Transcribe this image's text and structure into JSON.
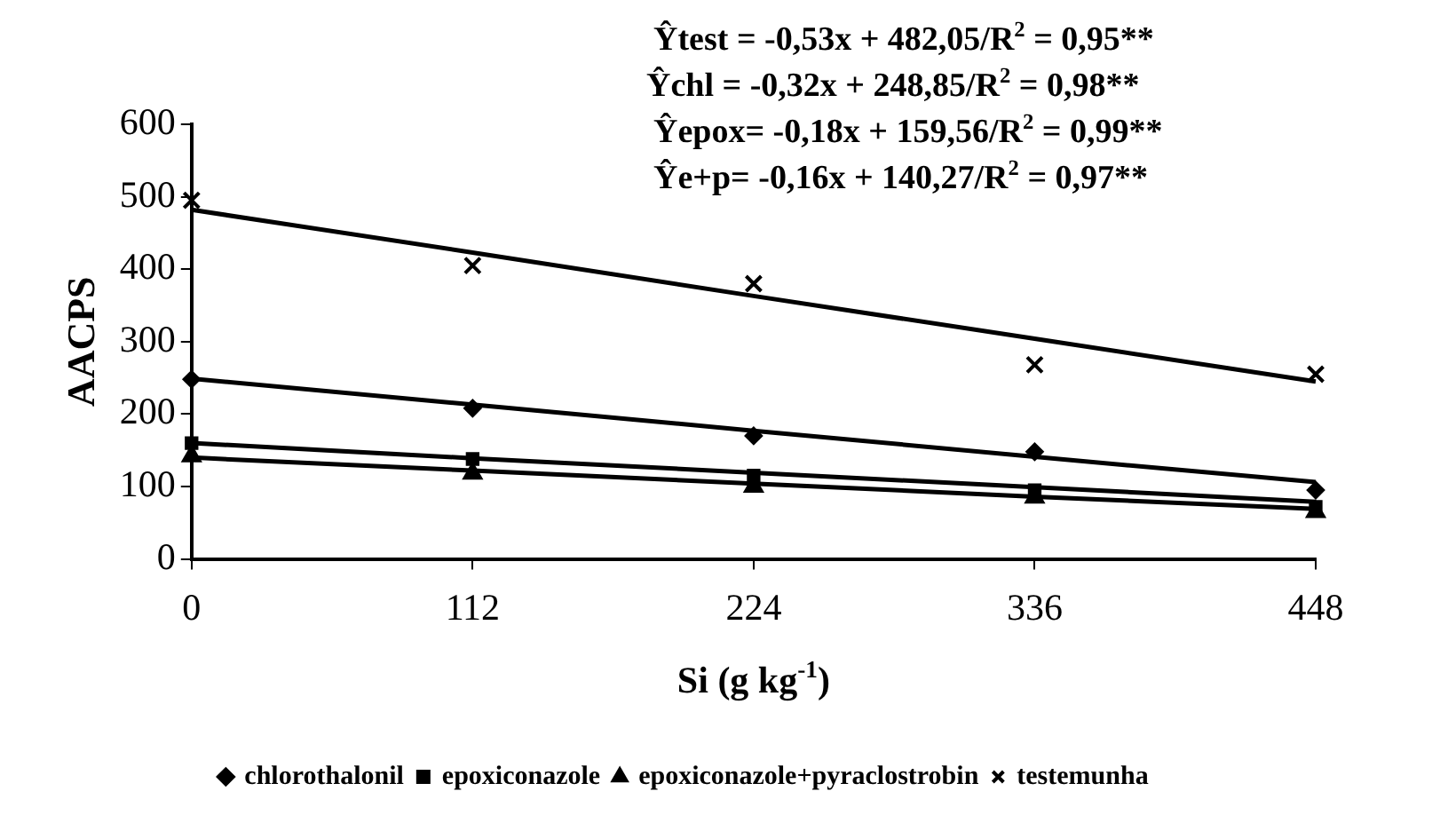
{
  "chart_data": {
    "type": "scatter",
    "xlabel": "Si (g kg$^{-1}$)",
    "ylabel": "AACPS",
    "x": [
      0,
      112,
      224,
      336,
      448
    ],
    "xlim": [
      0,
      448
    ],
    "xticks": [
      0,
      112,
      224,
      336,
      448
    ],
    "ylim": [
      0,
      600
    ],
    "yticks": [
      0,
      100,
      200,
      300,
      400,
      500,
      600
    ],
    "grid": false,
    "legend": "bottom",
    "series": [
      {
        "name": "chlorothalonil",
        "color": "#000000",
        "marker": "diamond",
        "values": [
          248,
          208,
          170,
          148,
          95
        ]
      },
      {
        "name": "epoxiconazole",
        "color": "#000000",
        "marker": "square",
        "values": [
          160,
          138,
          115,
          95,
          72
        ]
      },
      {
        "name": "epoxiconazole+pyraclostrobin",
        "color": "#000000",
        "marker": "triangle",
        "values": [
          142,
          118,
          100,
          85,
          65
        ]
      },
      {
        "name": "testemunha",
        "color": "#000000",
        "marker": "cross",
        "values": [
          495,
          405,
          380,
          268,
          255
        ]
      },
      {
        "type": "line",
        "color": "#000000",
        "marker": "none",
        "values": [
          482,
          423,
          363,
          304,
          245
        ]
      },
      {
        "type": "line",
        "color": "#000000",
        "marker": "none",
        "values": [
          249,
          213,
          177,
          141,
          106
        ]
      },
      {
        "type": "line",
        "color": "#000000",
        "marker": "none",
        "values": [
          160,
          139,
          119,
          99,
          79
        ]
      },
      {
        "type": "line",
        "color": "#000000",
        "marker": "none",
        "values": [
          140,
          122,
          104,
          86,
          69
        ]
      }
    ],
    "annotations": [
      "Ŷtest = -0,53x + 482,05/R$^{2}$ = 0,95**",
      "Ŷchl = -0,32x + 248,85/R$^{2}$ = 0,98**",
      "Ŷepox= -0,18x + 159,56/R$^{2}$ = 0,99**",
      "Ŷe+p= -0,16x + 140,27/R$^{2}$ = 0,97**"
    ]
  }
}
